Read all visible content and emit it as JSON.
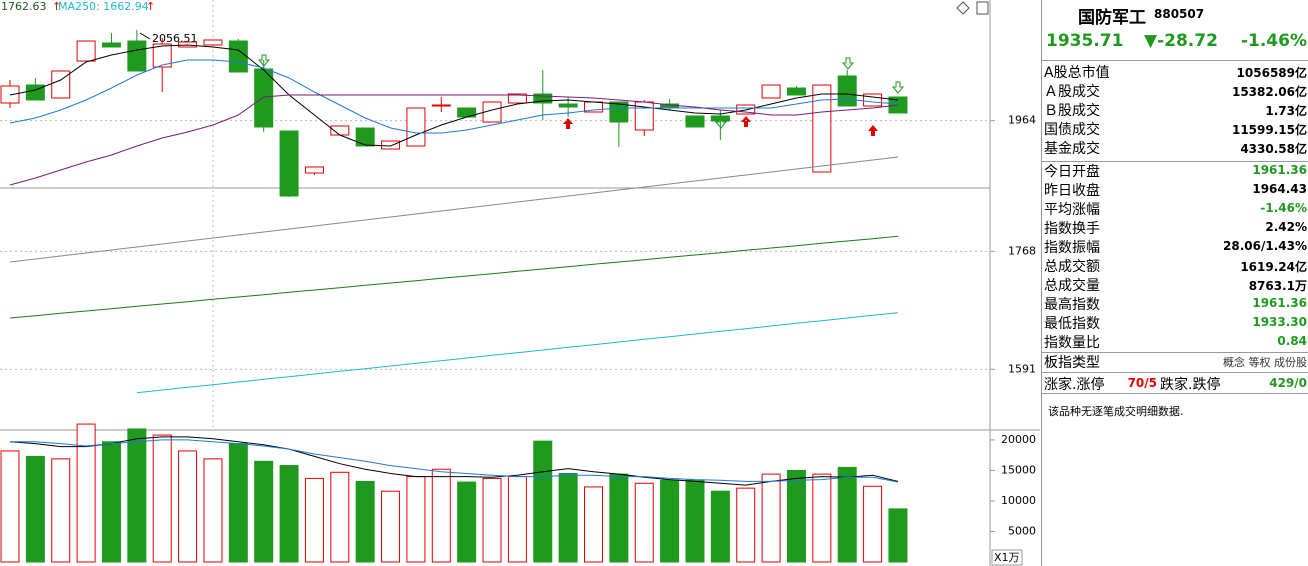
{
  "chart_data": [
    {
      "type": "candlestick",
      "categories": [
        null,
        null,
        null,
        null,
        null,
        null,
        null,
        null,
        null,
        null,
        null,
        null,
        null,
        null,
        null,
        null,
        null,
        null,
        null,
        null,
        null,
        null,
        null,
        null,
        null,
        null,
        null,
        null,
        null,
        null,
        null,
        null,
        null,
        null,
        null,
        null
      ],
      "open": [
        1990.5,
        2017.5,
        1998,
        2053.5,
        2080.5,
        2083.5,
        2044.5,
        2074.5,
        2077.5,
        2083.5,
        2041.5,
        1948.5,
        1885.5,
        1942.5,
        1953,
        1921.5,
        1926,
        1987.5,
        1983,
        1962,
        1990.5,
        2004,
        1989,
        1977,
        1992,
        1950,
        1989,
        1971,
        1971,
        1974,
        1998,
        2013,
        1887,
        2031,
        1986,
        1999.5
      ],
      "high": [
        2025,
        2028,
        2038.5,
        2083.5,
        2095.5,
        2100,
        2088,
        2082,
        2085,
        2086.5,
        2055,
        1948.5,
        1894.5,
        1956,
        1953,
        1933.5,
        1983,
        1999.5,
        1983,
        1992,
        2004,
        2040,
        1999.5,
        1992,
        1992,
        1995,
        1996.5,
        1971,
        1980,
        1987.5,
        2017.5,
        2016,
        2017.5,
        2040,
        2004,
        1999.5
      ],
      "low": [
        1983,
        1995,
        1998,
        2053.5,
        2074.5,
        2038.5,
        2007,
        2074.5,
        2077.5,
        2037,
        1947,
        1849.5,
        1882.5,
        1942.5,
        1926,
        1921.5,
        1926,
        1977,
        1969.5,
        1962,
        1990.5,
        1965,
        1969.5,
        1977,
        1924.5,
        1941,
        1980,
        1954.5,
        1935,
        1974,
        1998,
        2002.5,
        1887,
        1986,
        1986,
        1975.5
      ],
      "close": [
        2016,
        1995,
        2038.5,
        2083.5,
        2074.5,
        2038.5,
        2079,
        2082,
        2085,
        2037,
        1954.5,
        1851,
        1894.5,
        1956,
        1926,
        1933.5,
        1983,
        1987.5,
        1969.5,
        1992,
        2004,
        1990.5,
        1984.5,
        1992,
        1962,
        1992,
        1983,
        1954.5,
        1963.5,
        1987.5,
        2017.5,
        2002.5,
        2017.5,
        1986,
        2004,
        1975.5
      ],
      "up_color": "#e00000",
      "down_color": "#1f9a1f",
      "series": [
        {
          "color": "#000000",
          "values": [
            2002.5,
            2010,
            2025,
            2052,
            2062.5,
            2070,
            2076,
            2077.5,
            2074.5,
            2070,
            2040,
            2002.5,
            1972.5,
            1942.5,
            1927.5,
            1926,
            1942.5,
            1957.5,
            1969.5,
            1980,
            1989,
            1993.5,
            1995,
            1992,
            1989,
            1984.5,
            1980,
            1975.5,
            1974,
            1980,
            1989,
            1998,
            2004,
            2004,
            1999.5,
            1995
          ]
        },
        {
          "color": "#1e7ad8",
          "values": [
            1960.5,
            1968,
            1980,
            1995,
            2013,
            2032.5,
            2047.5,
            2055,
            2055,
            2052,
            2043,
            2028,
            2007,
            1987.5,
            1968,
            1953,
            1945.5,
            1945.5,
            1950,
            1957.5,
            1965,
            1972.5,
            1975.5,
            1980,
            1983,
            1983,
            1983,
            1983,
            1983,
            1983,
            1983,
            1989,
            1995,
            1996.5,
            1992,
            1989
          ]
        },
        {
          "color": "#7a1a7a",
          "values": [
            1867.5,
            1878,
            1890,
            1902,
            1912.5,
            1926,
            1938,
            1947,
            1957.5,
            1972.5,
            1999.5,
            2002.5,
            2002.5,
            2002.5,
            2002.5,
            2002.5,
            2002.5,
            2002.5,
            2002.5,
            2002.5,
            2002.5,
            2001,
            1999.5,
            1998,
            1995,
            1992,
            1987.5,
            1984.5,
            1980,
            1977,
            1972.5,
            1972.5,
            1977,
            1980,
            1983,
            1987.5
          ]
        },
        {
          "color": "#888888",
          "values": [
            1752,
            1756.5,
            1761,
            1765.5,
            1770,
            1774.5,
            1779,
            1783.5,
            1788,
            1792.5,
            1797,
            1801.5,
            1806,
            1810.5,
            1815,
            1819.5,
            1824,
            1828.5,
            1833,
            1837.5,
            1842,
            1846.5,
            1851,
            1855.5,
            1860,
            1864.5,
            1869,
            1873.5,
            1878,
            1882.5,
            1887,
            1891.5,
            1896,
            1900.5,
            1905,
            1909.5
          ]
        },
        {
          "color": "#1a7a1a",
          "values": [
            1668,
            1671.5,
            1675,
            1678.5,
            1682,
            1685.5,
            1689,
            1692.5,
            1696,
            1699.5,
            1703,
            1706.5,
            1710,
            1713.5,
            1717,
            1720.5,
            1724,
            1727.5,
            1731,
            1734.5,
            1738,
            1741.5,
            1745,
            1748.5,
            1752,
            1755.5,
            1759,
            1762.5,
            1766,
            1769.5,
            1773,
            1776.5,
            1780,
            1783.5,
            1787,
            1790.5
          ]
        },
        {
          "color": "#22b8c8",
          "values": [
            null,
            null,
            null,
            null,
            null,
            1556,
            1560,
            1564,
            1568,
            1572,
            1576,
            1580,
            1584,
            1588,
            1592,
            1596,
            1600,
            1604,
            1608,
            1612,
            1616,
            1620,
            1624,
            1628,
            1632,
            1636,
            1640,
            1644,
            1648,
            1652,
            1656,
            1660,
            1664,
            1668,
            1672,
            1676
          ]
        }
      ],
      "ma_labels": [
        "1762.63",
        "MA250: 1662.94"
      ],
      "annotation": "2056.51",
      "ylim": [
        1500,
        2145
      ],
      "yticks": [
        1964,
        1768,
        1591
      ],
      "grid": true
    },
    {
      "type": "bar",
      "values": [
        18200,
        17300,
        16900,
        22600,
        19700,
        21800,
        20800,
        18200,
        16900,
        19400,
        16500,
        15800,
        13700,
        14700,
        13200,
        11600,
        14000,
        15200,
        13100,
        13700,
        14000,
        19800,
        14500,
        12300,
        14400,
        12900,
        13400,
        13400,
        11600,
        12100,
        14400,
        15000,
        14400,
        15500,
        12400,
        8700
      ],
      "series": [
        {
          "color": "#000000",
          "values": [
            19700,
            19400,
            18900,
            18900,
            19400,
            20200,
            20500,
            20500,
            20200,
            19700,
            19200,
            18500,
            17300,
            16100,
            15200,
            14500,
            14000,
            14000,
            14000,
            13900,
            14200,
            14800,
            15300,
            14800,
            14400,
            13900,
            13500,
            13200,
            12900,
            12600,
            13200,
            13700,
            14000,
            13900,
            14200,
            13200
          ]
        },
        {
          "color": "#1e7ad8",
          "values": [
            19700,
            19700,
            19400,
            19000,
            19400,
            19700,
            20000,
            20000,
            19700,
            19400,
            19000,
            18500,
            17700,
            17100,
            16500,
            15800,
            15300,
            14800,
            14500,
            14200,
            14000,
            14000,
            14200,
            14200,
            14000,
            14000,
            13700,
            13500,
            13400,
            13200,
            13200,
            13400,
            13500,
            13900,
            13900,
            13100
          ]
        }
      ],
      "unit": "X1万",
      "ylim": [
        0,
        21300
      ],
      "yticks": [
        20000,
        15000,
        10000,
        5000
      ],
      "grid": false
    }
  ],
  "panel": {
    "name": "国防军工",
    "code": "880507",
    "price": "1935.71",
    "change": "▼-28.72",
    "change_pct": "-1.46%",
    "rows": [
      {
        "label": "A股总市值",
        "value": "1056589亿",
        "color": "#000000"
      },
      {
        "label": "Ａ股成交",
        "value": "15382.06亿",
        "color": "#000000"
      },
      {
        "label": "Ｂ股成交",
        "value": "1.73亿",
        "color": "#000000"
      },
      {
        "label": "国债成交",
        "value": "11599.15亿",
        "color": "#000000"
      },
      {
        "label": "基金成交",
        "value": "4330.58亿",
        "color": "#000000"
      },
      {
        "label": "今日开盘",
        "value": "1961.36",
        "color": "#1f9a1f"
      },
      {
        "label": "昨日收盘",
        "value": "1964.43",
        "color": "#000000"
      },
      {
        "label": "平均涨幅",
        "value": "-1.46%",
        "color": "#1f9a1f"
      },
      {
        "label": "指数换手",
        "value": "2.42%",
        "color": "#000000"
      },
      {
        "label": "指数振幅",
        "value": "28.06/1.43%",
        "color": "#000000"
      },
      {
        "label": "总成交额",
        "value": "1619.24亿",
        "color": "#000000"
      },
      {
        "label": "总成交量",
        "value": "8763.1万",
        "color": "#000000"
      },
      {
        "label": "最高指数",
        "value": "1961.36",
        "color": "#1f9a1f"
      },
      {
        "label": "最低指数",
        "value": "1933.30",
        "color": "#1f9a1f"
      },
      {
        "label": "指数量比",
        "value": "0.84",
        "color": "#1f9a1f"
      },
      {
        "label": "板指类型",
        "value": "概念 等权 成份股",
        "color": "#333333"
      }
    ],
    "updown": [
      "涨家.涨停",
      "70/5",
      "跌家.跌停",
      "429/0"
    ],
    "note": "该品种无逐笔成交明细数据."
  }
}
